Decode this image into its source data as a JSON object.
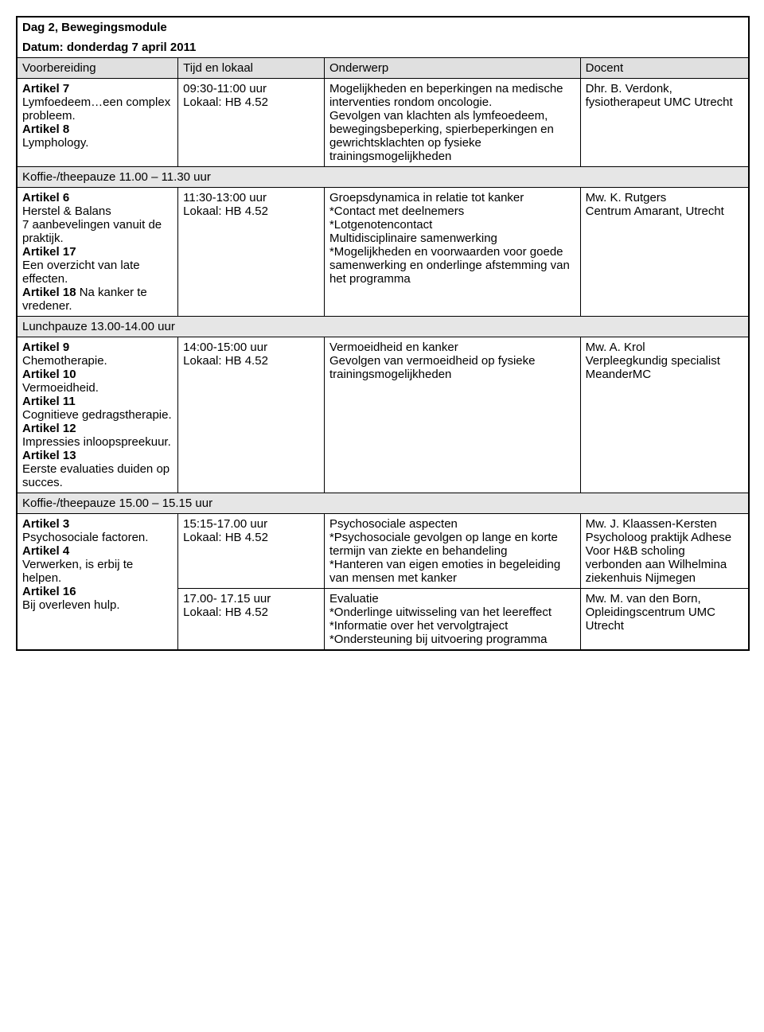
{
  "title": "Dag 2, Bewegingsmodule",
  "date_line": "Datum: donderdag 7 april 2011",
  "columns": {
    "c1": "Voorbereiding",
    "c2": "Tijd en lokaal",
    "c3": "Onderwerp",
    "c4": "Docent"
  },
  "rows": [
    {
      "prep_html": "<b>Artikel 7</b><br>Lymfoedeem…een complex probleem.<br><b>Artikel 8</b><br>Lymphology.",
      "time_html": "09:30-11:00 uur<br>Lokaal: HB 4.52",
      "subject_html": "Mogelijkheden en beperkingen na medische interventies rondom oncologie.<br>Gevolgen van klachten als lymfeoedeem, bewegingsbeperking, spierbeperkingen en gewrichtsklachten op fysieke trainingsmogelijkheden",
      "docent_html": "Dhr. B. Verdonk, fysiotherapeut UMC Utrecht"
    }
  ],
  "break1": "Koffie-/theepauze 11.00 – 11.30 uur",
  "row2": {
    "prep_html": "<b>Artikel 6</b><br>Herstel & Balans<br>7 aanbevelingen vanuit de praktijk.<br><b>Artikel 17</b><br>Een overzicht van late effecten.<br><b>Artikel 18</b> Na kanker te vredener.",
    "time_html": "11:30-13:00 uur<br>Lokaal: HB 4.52",
    "subject_html": "Groepsdynamica in relatie tot kanker<br>*Contact met deelnemers<br>*Lotgenotencontact<br>Multidisciplinaire samenwerking<br>*Mogelijkheden en voorwaarden voor goede samenwerking en onderlinge afstemming van het programma",
    "docent_html": "Mw. K. Rutgers<br>Centrum Amarant, Utrecht"
  },
  "break2": "Lunchpauze 13.00-14.00 uur",
  "row3": {
    "prep_html": "<b>Artikel 9</b><br>Chemotherapie.<br><b>Artikel 10</b><br>Vermoeidheid.<br><b>Artikel 11</b><br>Cognitieve gedragstherapie.<br><b>Artikel 12</b><br>Impressies inloopspreekuur.<br><b>Artikel 13</b><br>Eerste evaluaties duiden op succes.",
    "time_html": "14:00-15:00 uur<br>Lokaal: HB 4.52",
    "subject_html": "Vermoeidheid en kanker<br>Gevolgen van vermoeidheid op fysieke trainingsmogelijkheden",
    "docent_html": "Mw. A. Krol<br>Verpleegkundig specialist MeanderMC"
  },
  "break3": "Koffie-/theepauze 15.00 – 15.15 uur",
  "row4": {
    "prep_html": "<b>Artikel 3</b><br>Psychosociale factoren.<br><b>Artikel 4</b><br>Verwerken, is erbij te helpen.<br><b>Artikel 16</b><br>Bij overleven hulp.",
    "time_html": "15:15-17.00 uur<br>Lokaal: HB 4.52",
    "subject_html": "Psychosociale aspecten<br>*Psychosociale gevolgen op lange en korte termijn van ziekte en behandeling<br>*Hanteren van eigen emoties in begeleiding van mensen met kanker",
    "docent_html": "Mw. J. Klaassen-Kersten<br>Psycholoog praktijk Adhese<br>Voor H&B scholing verbonden aan Wilhelmina ziekenhuis Nijmegen"
  },
  "row5": {
    "prep_html": "",
    "time_html": "17.00- 17.15 uur<br>Lokaal: HB 4.52",
    "subject_html": "Evaluatie<br>*Onderlinge uitwisseling van het leereffect<br>*Informatie over het vervolgtraject<br>*Ondersteuning bij uitvoering programma",
    "docent_html": "Mw. M. van den Born, Opleidingscentrum UMC Utrecht"
  },
  "colors": {
    "header_bg": "#e0e0e0",
    "break_bg": "#e6e6e6",
    "border": "#000000",
    "text": "#000000",
    "bg": "#ffffff"
  },
  "font": {
    "family": "Arial",
    "size_pt": 11
  }
}
